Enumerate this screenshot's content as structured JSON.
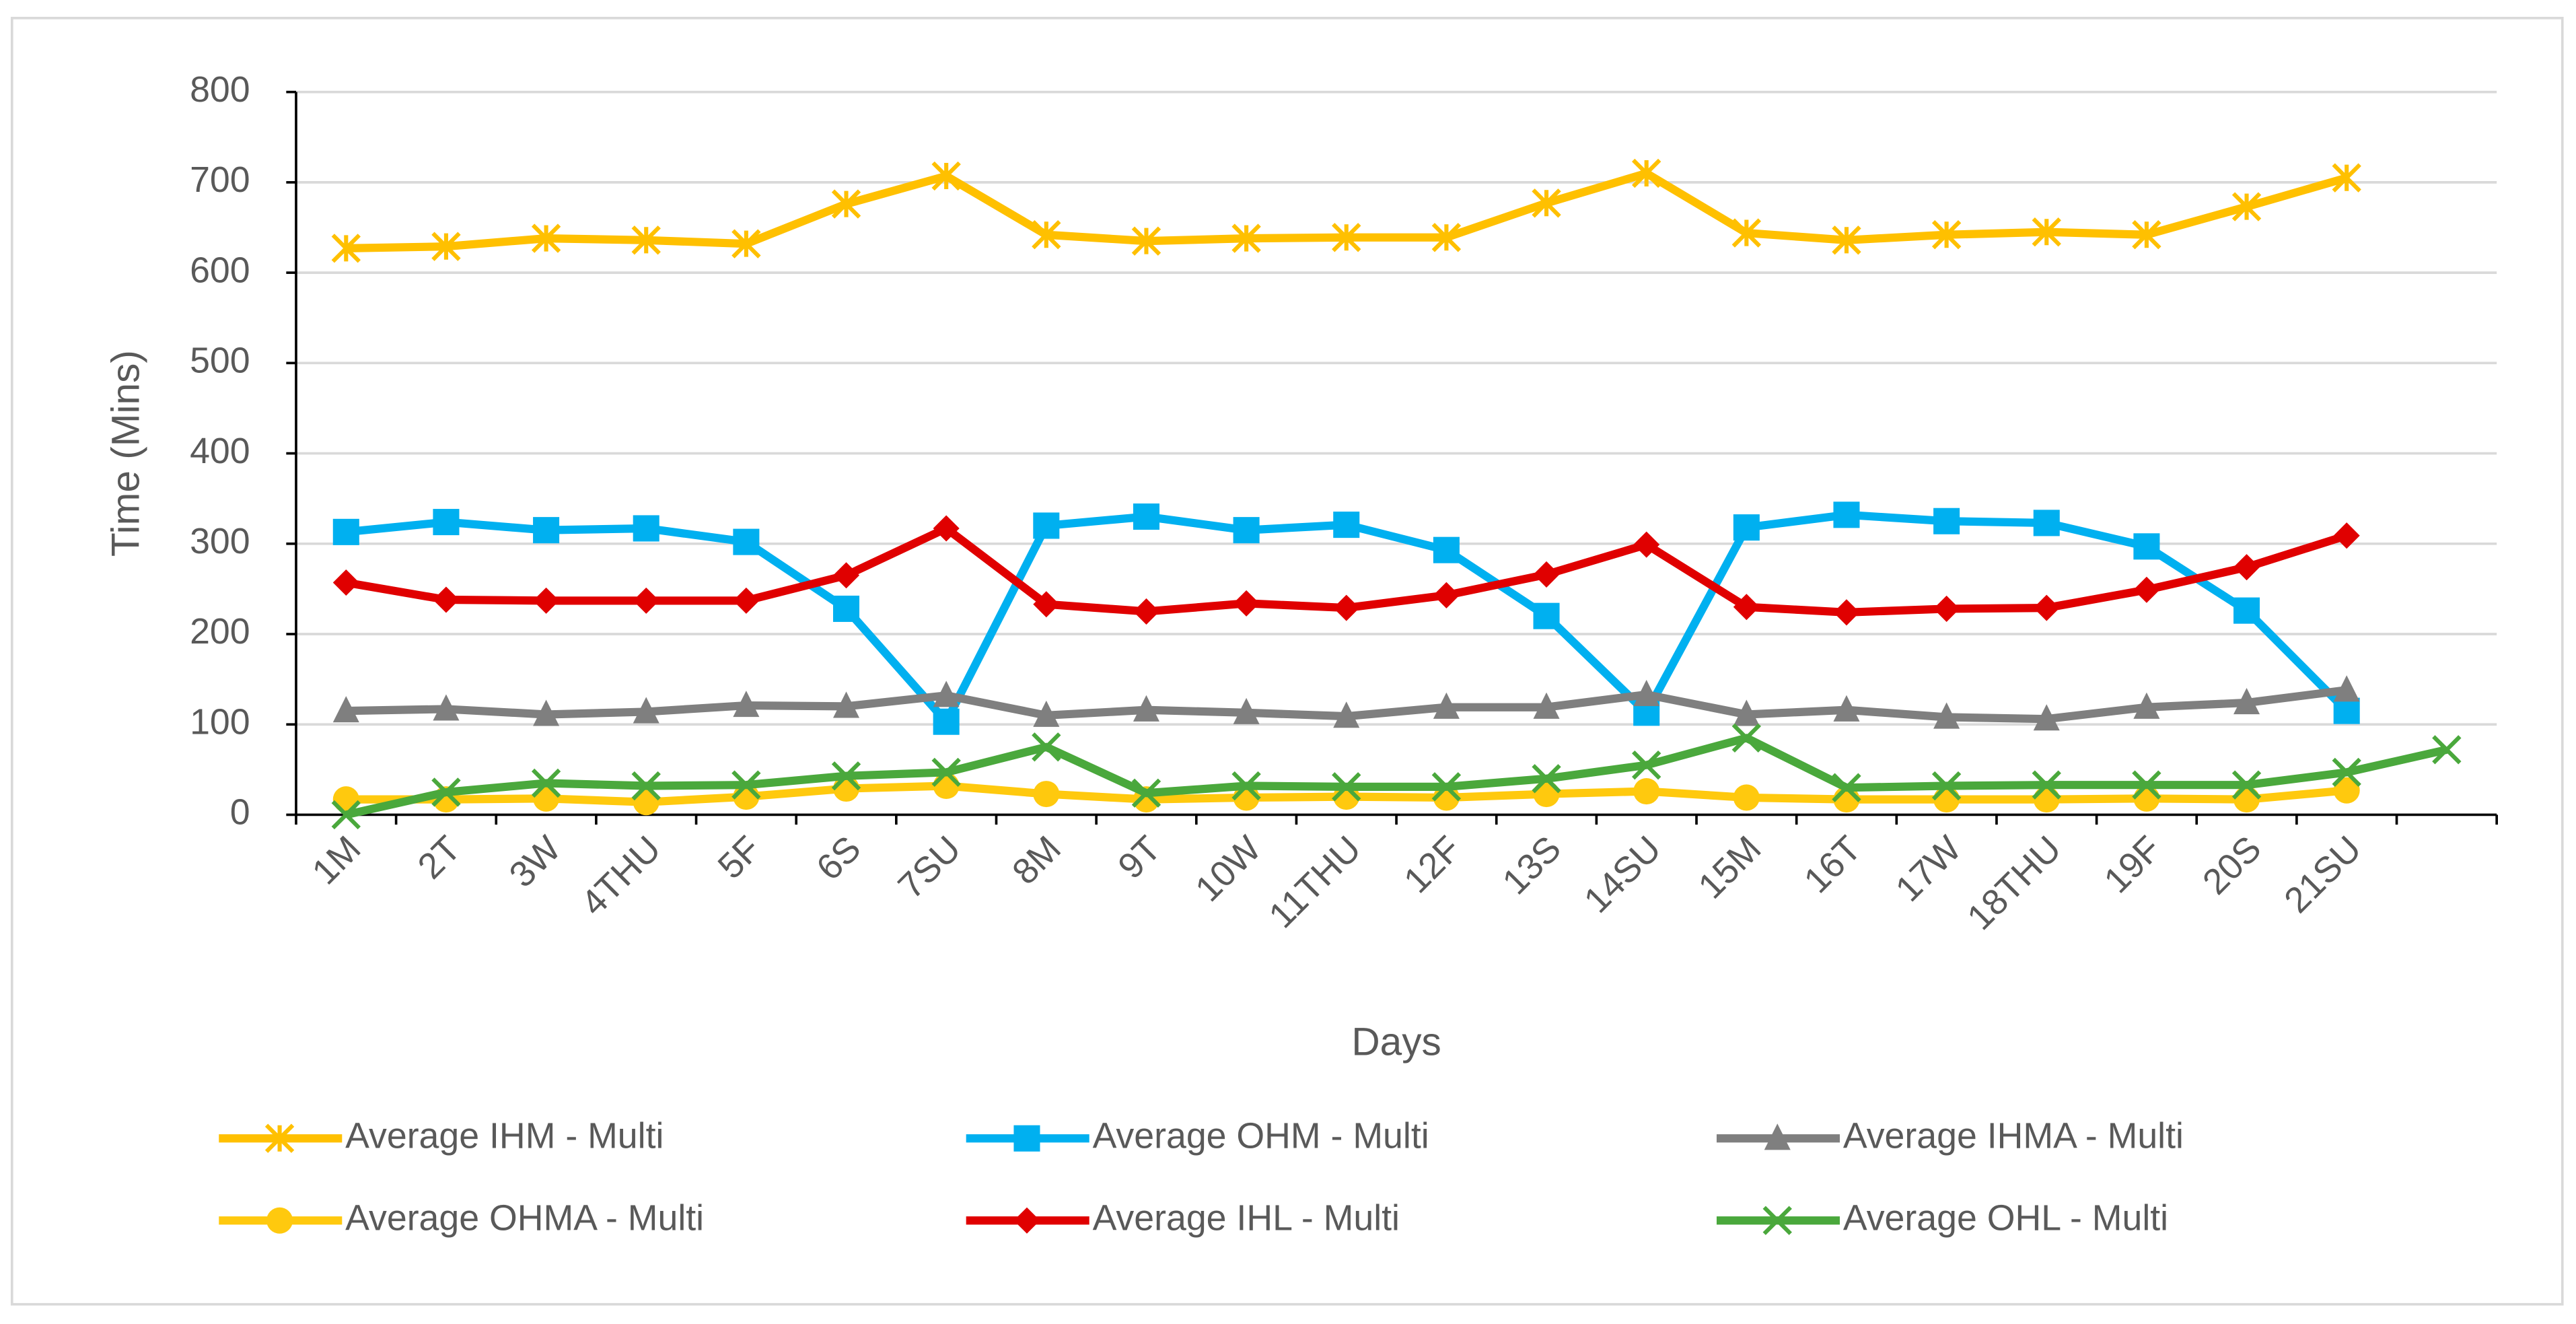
{
  "chart_data": {
    "type": "line",
    "x_label": "Days",
    "y_label": "Time (Mins)",
    "categories": [
      "1M",
      "2T",
      "3W",
      "4THU",
      "5F",
      "6S",
      "7SU",
      "8M",
      "9T",
      "10W",
      "11THU",
      "12F",
      "13S",
      "14SU",
      "15M",
      "16T",
      "17W",
      "18THU",
      "19F",
      "20S",
      "21SU",
      null
    ],
    "ylim": [
      0,
      800
    ],
    "yticks": [
      0,
      100,
      200,
      300,
      400,
      500,
      600,
      700,
      800
    ],
    "grid": true,
    "legend": "bottom",
    "series": [
      {
        "name": "Average IHM - Multi",
        "color": "#ffc000",
        "marker": "asterisk",
        "values": [
          627,
          629,
          638,
          636,
          632,
          676,
          707,
          642,
          635,
          638,
          639,
          639,
          677,
          710,
          644,
          636,
          642,
          645,
          642,
          673,
          705,
          null
        ]
      },
      {
        "name": "Average OHM - Multi",
        "color": "#00b0f0",
        "marker": "square",
        "values": [
          313,
          324,
          315,
          317,
          302,
          228,
          103,
          320,
          330,
          315,
          321,
          293,
          220,
          113,
          318,
          332,
          325,
          323,
          297,
          226,
          115,
          null
        ]
      },
      {
        "name": "Average IHMA - Multi",
        "color": "#7f7f7f",
        "marker": "triangle",
        "values": [
          115,
          117,
          111,
          114,
          121,
          120,
          132,
          110,
          116,
          113,
          109,
          119,
          119,
          133,
          111,
          116,
          108,
          106,
          119,
          124,
          138,
          null
        ]
      },
      {
        "name": "Average OHMA - Multi",
        "color": "#ffc90e",
        "marker": "circle",
        "values": [
          17,
          17,
          18,
          14,
          20,
          29,
          32,
          23,
          17,
          19,
          20,
          19,
          23,
          26,
          19,
          17,
          17,
          17,
          18,
          17,
          27,
          null
        ]
      },
      {
        "name": "Average IHL - Multi",
        "color": "#e00000",
        "marker": "diamond",
        "values": [
          257,
          238,
          237,
          237,
          237,
          265,
          317,
          233,
          225,
          234,
          229,
          243,
          266,
          299,
          230,
          224,
          228,
          229,
          249,
          274,
          309,
          null
        ]
      },
      {
        "name": "Average OHL - Multi",
        "color": "#4aa83c",
        "marker": "x",
        "values": [
          0,
          25,
          35,
          32,
          33,
          43,
          47,
          75,
          24,
          32,
          31,
          31,
          40,
          55,
          85,
          30,
          32,
          33,
          33,
          33,
          47,
          72
        ]
      }
    ]
  }
}
